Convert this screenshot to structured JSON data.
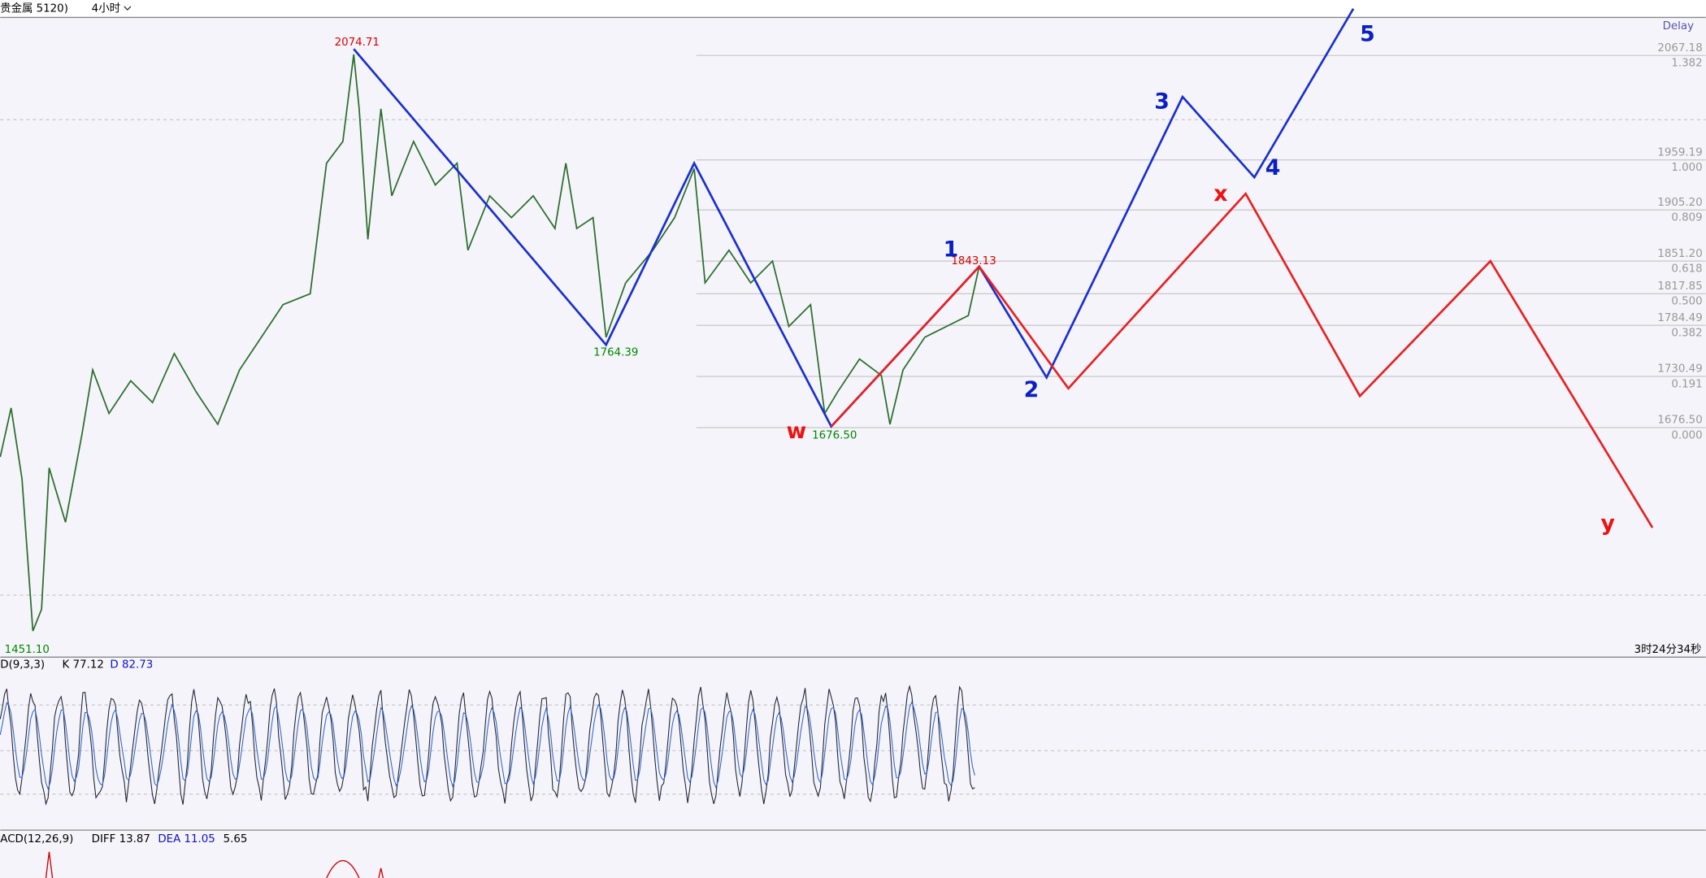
{
  "toolbar": {
    "symbol": "贵金属 5120)",
    "period": "4小时"
  },
  "delay": "Delay",
  "axis_labels": [
    "2067.18",
    "1.382",
    "1959.19",
    "1.000",
    "1905.20",
    "0.809",
    "1851.20",
    "0.618",
    "1817.85",
    "0.500",
    "1784.49",
    "0.382",
    "1730.49",
    "0.191",
    "1676.50",
    "0.000"
  ],
  "price_labels": {
    "high": "2074.71",
    "low1": "1764.39",
    "peak": "1843.13",
    "low2": "1676.50",
    "bottom": "1451.10"
  },
  "waves": {
    "blue": [
      "1",
      "2",
      "3",
      "4",
      "5"
    ],
    "red": [
      "w",
      "x",
      "y"
    ]
  },
  "countdown": "3时24分34秒",
  "kdj": {
    "name": "D(9,3,3)",
    "k": "K 77.12",
    "d": "D 82.73"
  },
  "macd": {
    "name": "ACD(12,26,9)",
    "diff": "DIFF 13.87",
    "dea": "DEA 11.05",
    "macd": "5.65"
  }
}
